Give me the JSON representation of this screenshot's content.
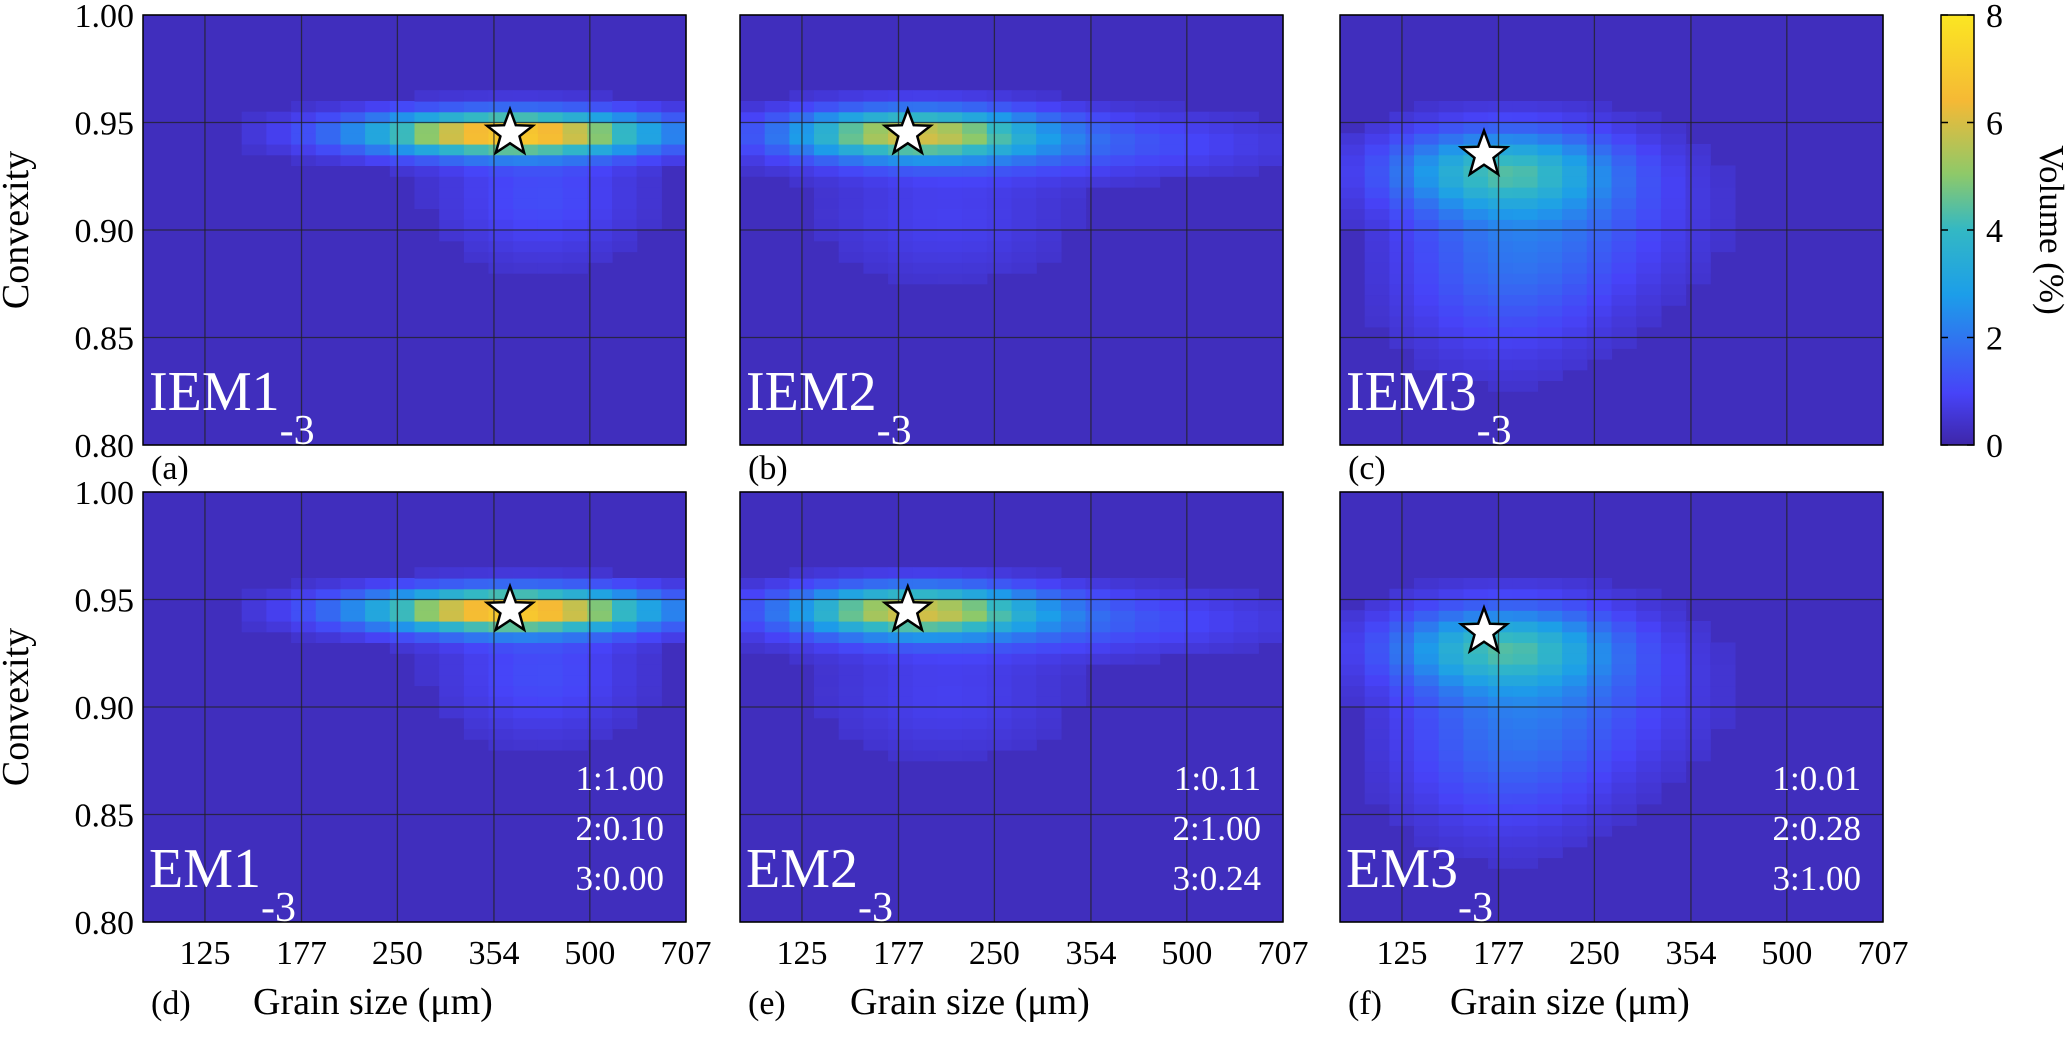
{
  "figure": {
    "colorbar": {
      "label": "Volume (%)",
      "range": [
        0,
        8
      ],
      "ticks": [
        "0",
        "2",
        "4",
        "6",
        "8"
      ],
      "colormap": "parula",
      "colors": [
        "#3e26a8",
        "#4743f8",
        "#1c9ee9",
        "#33b8c4",
        "#8ec969",
        "#f5b935",
        "#fbe622"
      ]
    }
  },
  "chart_data": [
    {
      "type": "heatmap",
      "panel": "(a)",
      "label_main": "IEM1",
      "label_sub": "-3",
      "ylabel": "Convexity",
      "xlabel": "",
      "x_scale": "log",
      "xlim": [
        100,
        707
      ],
      "xticks": [
        "125",
        "177",
        "250",
        "354",
        "500",
        "707"
      ],
      "ylim": [
        0.8,
        1.0
      ],
      "yticks": [
        "0.80",
        "0.85",
        "0.90",
        "0.95",
        "1.00"
      ],
      "grid": true,
      "peak": {
        "grain_size": 380,
        "convexity": 0.945,
        "value": 6.8
      },
      "blobs": [
        {
          "grain_size": 375,
          "convexity": 0.945,
          "amp": 6.8,
          "sx_log2": 0.55,
          "sy": 0.007
        },
        {
          "grain_size": 420,
          "convexity": 0.915,
          "amp": 0.9,
          "sx_log2": 0.35,
          "sy": 0.02
        }
      ],
      "star": {
        "grain_size": 375,
        "convexity": 0.945
      },
      "ratios": []
    },
    {
      "type": "heatmap",
      "panel": "(b)",
      "label_main": "IEM2",
      "label_sub": "-3",
      "ylabel": "",
      "xlabel": "",
      "x_scale": "log",
      "xlim": [
        100,
        707
      ],
      "xticks": [
        "125",
        "177",
        "250",
        "354",
        "500",
        "707"
      ],
      "ylim": [
        0.8,
        1.0
      ],
      "yticks": [
        "0.80",
        "0.85",
        "0.90",
        "0.95",
        "1.00"
      ],
      "grid": true,
      "peak": {
        "grain_size": 185,
        "convexity": 0.945,
        "value": 5.2
      },
      "blobs": [
        {
          "grain_size": 185,
          "convexity": 0.945,
          "amp": 5.0,
          "sx_log2": 0.45,
          "sy": 0.008
        },
        {
          "grain_size": 300,
          "convexity": 0.94,
          "amp": 1.2,
          "sx_log2": 0.8,
          "sy": 0.01
        },
        {
          "grain_size": 210,
          "convexity": 0.905,
          "amp": 0.6,
          "sx_log2": 0.45,
          "sy": 0.02
        }
      ],
      "star": {
        "grain_size": 183,
        "convexity": 0.945
      },
      "ratios": []
    },
    {
      "type": "heatmap",
      "panel": "(c)",
      "label_main": "IEM3",
      "label_sub": "-3",
      "ylabel": "",
      "xlabel": "",
      "x_scale": "log",
      "xlim": [
        100,
        707
      ],
      "xticks": [
        "125",
        "177",
        "250",
        "354",
        "500",
        "707"
      ],
      "ylim": [
        0.8,
        1.0
      ],
      "yticks": [
        "0.80",
        "0.85",
        "0.90",
        "0.95",
        "1.00"
      ],
      "grid": true,
      "peak": {
        "grain_size": 175,
        "convexity": 0.93,
        "value": 3.5
      },
      "blobs": [
        {
          "grain_size": 178,
          "convexity": 0.928,
          "amp": 3.3,
          "sx_log2": 0.4,
          "sy": 0.013
        },
        {
          "grain_size": 180,
          "convexity": 0.885,
          "amp": 1.3,
          "sx_log2": 0.38,
          "sy": 0.03
        },
        {
          "grain_size": 240,
          "convexity": 0.905,
          "amp": 0.8,
          "sx_log2": 0.45,
          "sy": 0.025
        }
      ],
      "star": {
        "grain_size": 168,
        "convexity": 0.935
      },
      "ratios": []
    },
    {
      "type": "heatmap",
      "panel": "(d)",
      "label_main": "EM1",
      "label_sub": "-3",
      "ylabel": "Convexity",
      "xlabel": "Grain size (μm)",
      "x_scale": "log",
      "xlim": [
        100,
        707
      ],
      "xticks": [
        "125",
        "177",
        "250",
        "354",
        "500",
        "707"
      ],
      "ylim": [
        0.8,
        1.0
      ],
      "yticks": [
        "0.80",
        "0.85",
        "0.90",
        "0.95",
        "1.00"
      ],
      "grid": true,
      "peak": {
        "grain_size": 380,
        "convexity": 0.945,
        "value": 6.8
      },
      "blobs": [
        {
          "grain_size": 375,
          "convexity": 0.945,
          "amp": 6.8,
          "sx_log2": 0.55,
          "sy": 0.007
        },
        {
          "grain_size": 420,
          "convexity": 0.915,
          "amp": 0.9,
          "sx_log2": 0.35,
          "sy": 0.02
        }
      ],
      "star": {
        "grain_size": 375,
        "convexity": 0.945
      },
      "ratios": [
        "1:1.00",
        "2:0.10",
        "3:0.00"
      ]
    },
    {
      "type": "heatmap",
      "panel": "(e)",
      "label_main": "EM2",
      "label_sub": "-3",
      "ylabel": "",
      "xlabel": "Grain size (μm)",
      "x_scale": "log",
      "xlim": [
        100,
        707
      ],
      "xticks": [
        "125",
        "177",
        "250",
        "354",
        "500",
        "707"
      ],
      "ylim": [
        0.8,
        1.0
      ],
      "yticks": [
        "0.80",
        "0.85",
        "0.90",
        "0.95",
        "1.00"
      ],
      "grid": true,
      "peak": {
        "grain_size": 185,
        "convexity": 0.945,
        "value": 5.2
      },
      "blobs": [
        {
          "grain_size": 185,
          "convexity": 0.945,
          "amp": 5.0,
          "sx_log2": 0.45,
          "sy": 0.008
        },
        {
          "grain_size": 300,
          "convexity": 0.94,
          "amp": 1.2,
          "sx_log2": 0.8,
          "sy": 0.01
        },
        {
          "grain_size": 210,
          "convexity": 0.905,
          "amp": 0.6,
          "sx_log2": 0.45,
          "sy": 0.02
        }
      ],
      "star": {
        "grain_size": 183,
        "convexity": 0.945
      },
      "ratios": [
        "1:0.11",
        "2:1.00",
        "3:0.24"
      ]
    },
    {
      "type": "heatmap",
      "panel": "(f)",
      "label_main": "EM3",
      "label_sub": "-3",
      "ylabel": "",
      "xlabel": "Grain size (μm)",
      "x_scale": "log",
      "xlim": [
        100,
        707
      ],
      "xticks": [
        "125",
        "177",
        "250",
        "354",
        "500",
        "707"
      ],
      "ylim": [
        0.8,
        1.0
      ],
      "yticks": [
        "0.80",
        "0.85",
        "0.90",
        "0.95",
        "1.00"
      ],
      "grid": true,
      "peak": {
        "grain_size": 175,
        "convexity": 0.93,
        "value": 3.5
      },
      "blobs": [
        {
          "grain_size": 178,
          "convexity": 0.928,
          "amp": 3.3,
          "sx_log2": 0.4,
          "sy": 0.013
        },
        {
          "grain_size": 180,
          "convexity": 0.885,
          "amp": 1.3,
          "sx_log2": 0.38,
          "sy": 0.03
        },
        {
          "grain_size": 240,
          "convexity": 0.905,
          "amp": 0.8,
          "sx_log2": 0.45,
          "sy": 0.025
        }
      ],
      "star": {
        "grain_size": 168,
        "convexity": 0.935
      },
      "ratios": [
        "1:0.01",
        "2:0.28",
        "3:1.00"
      ]
    }
  ]
}
